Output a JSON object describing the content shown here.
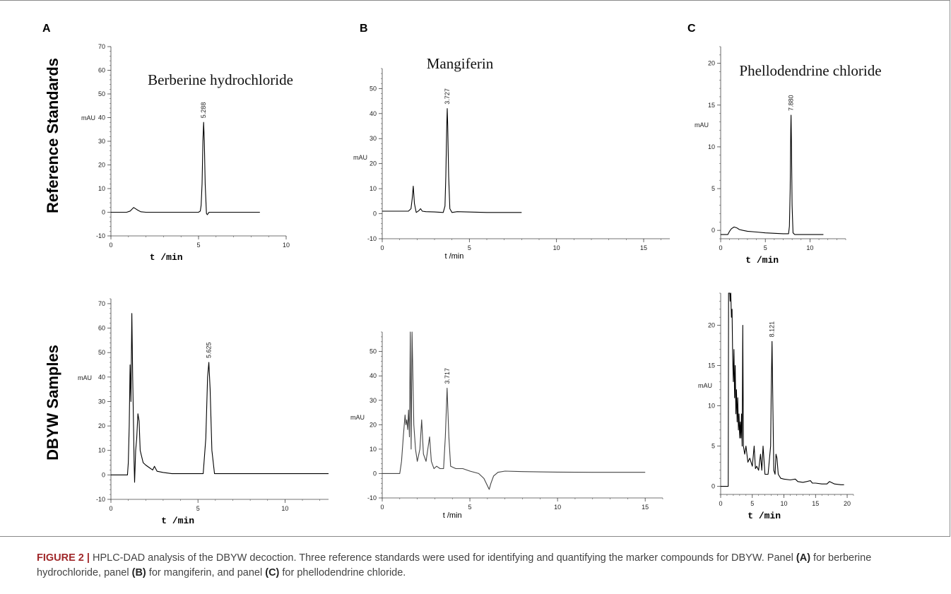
{
  "figure": {
    "row_labels": [
      "Reference Standards",
      "DBYW Samples"
    ],
    "panel_letters": [
      "A",
      "B",
      "C"
    ]
  },
  "caption": {
    "label": "FIGURE 2 |",
    "text_1": " HPLC-DAD analysis of the DBYW decoction. Three reference standards were used for identifying and quantifying the marker compounds for DBYW. Panel ",
    "bold_a": "(A)",
    "text_2": " for berberine hydrochloride, panel ",
    "bold_b": "(B)",
    "text_3": " for mangiferin, and panel ",
    "bold_c": "(C)",
    "text_4": " for phellodendrine chloride."
  },
  "chart_data": [
    {
      "id": "A-top",
      "type": "line",
      "panel": "A",
      "row": "Reference Standards",
      "title": "Berberine hydrochloride",
      "ylabel": "mAU",
      "xlabel": "t /min",
      "xlim": [
        0,
        10
      ],
      "ylim": [
        -10,
        70
      ],
      "xticks": [
        0,
        5,
        10
      ],
      "yticks": [
        -10,
        0,
        10,
        20,
        30,
        40,
        50,
        60,
        70
      ],
      "peak_labels": [
        {
          "x": 5.288,
          "y": 38,
          "text": "5.288"
        }
      ],
      "series": [
        {
          "x": [
            0,
            0.9,
            1.1,
            1.3,
            1.5,
            1.7,
            2.0,
            3.0,
            4.5,
            5.0,
            5.1,
            5.15,
            5.2,
            5.25,
            5.29,
            5.33,
            5.38,
            5.45,
            5.5,
            5.6,
            6.0,
            7.0,
            8.5
          ],
          "y": [
            0,
            0,
            0.5,
            2,
            1,
            0.2,
            0,
            0,
            0,
            0,
            0.5,
            3,
            12,
            30,
            38,
            30,
            12,
            -0.5,
            -1,
            0,
            0,
            0,
            0
          ]
        }
      ]
    },
    {
      "id": "B-top",
      "type": "line",
      "panel": "B",
      "row": "Reference Standards",
      "title": "Mangiferin",
      "ylabel": "mAU",
      "xlabel": "t /min",
      "xlim": [
        0,
        16.5
      ],
      "ylim": [
        -10,
        58
      ],
      "xticks": [
        0,
        5,
        10,
        15
      ],
      "yticks": [
        -10,
        0,
        10,
        20,
        30,
        40,
        50
      ],
      "peak_labels": [
        {
          "x": 3.727,
          "y": 42,
          "text": "3.727"
        }
      ],
      "series": [
        {
          "x": [
            0,
            1.5,
            1.65,
            1.72,
            1.78,
            1.85,
            1.95,
            2.1,
            2.2,
            2.3,
            2.5,
            3.0,
            3.5,
            3.6,
            3.65,
            3.7,
            3.73,
            3.76,
            3.81,
            3.88,
            4.0,
            4.3,
            6.0,
            8.0
          ],
          "y": [
            1,
            1,
            2,
            6,
            11,
            4,
            0.5,
            1.2,
            2,
            1,
            0.8,
            0.7,
            0.5,
            3,
            15,
            35,
            42,
            35,
            15,
            2,
            0.5,
            0.8,
            0.5,
            0.5
          ]
        }
      ]
    },
    {
      "id": "C-top",
      "type": "line",
      "panel": "C",
      "row": "Reference Standards",
      "title": "Phellodendrine chloride",
      "ylabel": "mAU",
      "xlabel": "t /min",
      "xlim": [
        0,
        14
      ],
      "ylim": [
        -1,
        22
      ],
      "xticks": [
        0,
        5,
        10
      ],
      "yticks": [
        0,
        5,
        10,
        15,
        20
      ],
      "peak_labels": [
        {
          "x": 7.88,
          "y": 13.8,
          "text": "7.880"
        }
      ],
      "series": [
        {
          "x": [
            0,
            0.8,
            1.0,
            1.2,
            1.5,
            1.8,
            2.1,
            2.5,
            3,
            4,
            5,
            6,
            7,
            7.6,
            7.7,
            7.78,
            7.85,
            7.88,
            7.92,
            8.0,
            8.1,
            8.3,
            9,
            11.5
          ],
          "y": [
            -0.5,
            -0.5,
            -0.1,
            0.2,
            0.4,
            0.3,
            0.1,
            0,
            -0.1,
            -0.2,
            -0.3,
            -0.35,
            -0.4,
            -0.4,
            0.5,
            5,
            12,
            13.8,
            11,
            3,
            -0.3,
            -0.5,
            -0.5,
            -0.5
          ]
        }
      ]
    },
    {
      "id": "A-bottom",
      "type": "line",
      "panel": "A",
      "row": "DBYW Samples",
      "title": "",
      "ylabel": "mAU",
      "xlabel": "t /min",
      "xlim": [
        0,
        12.5
      ],
      "ylim": [
        -10,
        72
      ],
      "xticks": [
        0,
        5,
        10
      ],
      "yticks": [
        -10,
        0,
        10,
        20,
        30,
        40,
        50,
        60,
        70
      ],
      "peak_labels": [
        {
          "x": 5.625,
          "y": 46,
          "text": "5.625"
        }
      ],
      "series": [
        {
          "x": [
            0,
            0.95,
            1.0,
            1.05,
            1.1,
            1.15,
            1.2,
            1.25,
            1.3,
            1.33,
            1.36,
            1.42,
            1.48,
            1.55,
            1.62,
            1.68,
            1.75,
            1.85,
            2.0,
            2.2,
            2.4,
            2.5,
            2.65,
            3.0,
            3.5,
            4.5,
            5.3,
            5.45,
            5.55,
            5.625,
            5.7,
            5.8,
            5.95,
            6.2,
            8,
            10,
            12.5
          ],
          "y": [
            0,
            0,
            5,
            20,
            45,
            30,
            66,
            40,
            20,
            5,
            -3,
            10,
            15,
            25,
            22,
            10,
            8,
            5,
            4,
            3,
            2,
            3.5,
            1.5,
            1,
            0.5,
            0.5,
            0.5,
            15,
            40,
            46,
            35,
            10,
            0.5,
            0.5,
            0.5,
            0.5,
            0.5
          ]
        }
      ]
    },
    {
      "id": "B-bottom",
      "type": "line",
      "panel": "B",
      "row": "DBYW Samples",
      "title": "",
      "ylabel": "mAU",
      "xlabel": "t /min",
      "xlim": [
        0,
        16
      ],
      "ylim": [
        -10,
        58
      ],
      "xticks": [
        0,
        5,
        10,
        15
      ],
      "yticks": [
        -10,
        0,
        10,
        20,
        30,
        40,
        50
      ],
      "peak_labels": [
        {
          "x": 3.717,
          "y": 35,
          "text": "3.717"
        }
      ],
      "series": [
        {
          "x": [
            0,
            1.0,
            1.1,
            1.2,
            1.3,
            1.35,
            1.4,
            1.45,
            1.5,
            1.55,
            1.6,
            1.65,
            1.7,
            1.8,
            1.9,
            2.0,
            2.15,
            2.25,
            2.35,
            2.5,
            2.6,
            2.7,
            2.8,
            2.95,
            3.1,
            3.3,
            3.5,
            3.6,
            3.7,
            3.8,
            3.9,
            4.2,
            4.6,
            5.0,
            5.5,
            5.8,
            6.0,
            6.1,
            6.2,
            6.35,
            6.6,
            7.0,
            8.0,
            10.0,
            12.0,
            15.0
          ],
          "y": [
            0,
            0,
            5,
            15,
            24,
            20,
            22,
            18,
            26,
            15,
            58,
            10,
            58,
            20,
            10,
            5,
            10,
            22,
            8,
            5,
            10,
            15,
            5,
            2,
            3,
            2,
            2,
            15,
            35,
            15,
            3,
            2,
            2,
            1,
            0,
            -2,
            -5,
            -6.5,
            -4,
            -1,
            0.5,
            1,
            0.8,
            0.6,
            0.5,
            0.5
          ]
        }
      ]
    },
    {
      "id": "C-bottom",
      "type": "line",
      "panel": "C",
      "row": "DBYW Samples",
      "title": "",
      "ylabel": "mAU",
      "xlabel": "t /min",
      "xlim": [
        0,
        21
      ],
      "ylim": [
        -1,
        24
      ],
      "xticks": [
        0,
        5,
        10,
        15,
        20
      ],
      "yticks": [
        0,
        5,
        10,
        15,
        20
      ],
      "peak_labels": [
        {
          "x": 8.121,
          "y": 18,
          "text": "8.121"
        }
      ],
      "series": [
        {
          "x": [
            0,
            1.2,
            1.25,
            1.45,
            1.5,
            1.6,
            1.7,
            1.8,
            1.9,
            2.0,
            2.1,
            2.2,
            2.3,
            2.4,
            2.5,
            2.6,
            2.7,
            2.8,
            2.9,
            3.0,
            3.1,
            3.2,
            3.3,
            3.4,
            3.5,
            3.6,
            3.8,
            4.0,
            4.3,
            4.6,
            5.0,
            5.3,
            5.5,
            5.7,
            6.0,
            6.3,
            6.5,
            6.7,
            7.0,
            7.5,
            7.9,
            8.0,
            8.12,
            8.25,
            8.4,
            8.6,
            8.75,
            8.9,
            9.1,
            9.5,
            10,
            11,
            11.8,
            12.2,
            13,
            14.2,
            14.5,
            15,
            16,
            16.8,
            17.2,
            18,
            19,
            19.5
          ],
          "y": [
            0,
            0,
            24,
            24,
            23,
            24,
            21,
            22,
            16,
            13,
            17,
            11,
            15,
            9,
            12,
            8,
            11,
            7,
            9,
            6,
            8,
            6,
            9,
            5,
            20,
            5,
            4,
            5,
            3,
            3.5,
            2.5,
            5,
            2.2,
            2.5,
            2,
            4,
            2,
            5,
            1.5,
            1.5,
            5,
            12,
            18,
            10,
            2,
            1.5,
            4,
            3.5,
            1.5,
            1,
            0.9,
            0.8,
            0.9,
            0.6,
            0.5,
            0.7,
            0.4,
            0.4,
            0.3,
            0.3,
            0.6,
            0.3,
            0.2,
            0.2
          ]
        }
      ]
    }
  ]
}
